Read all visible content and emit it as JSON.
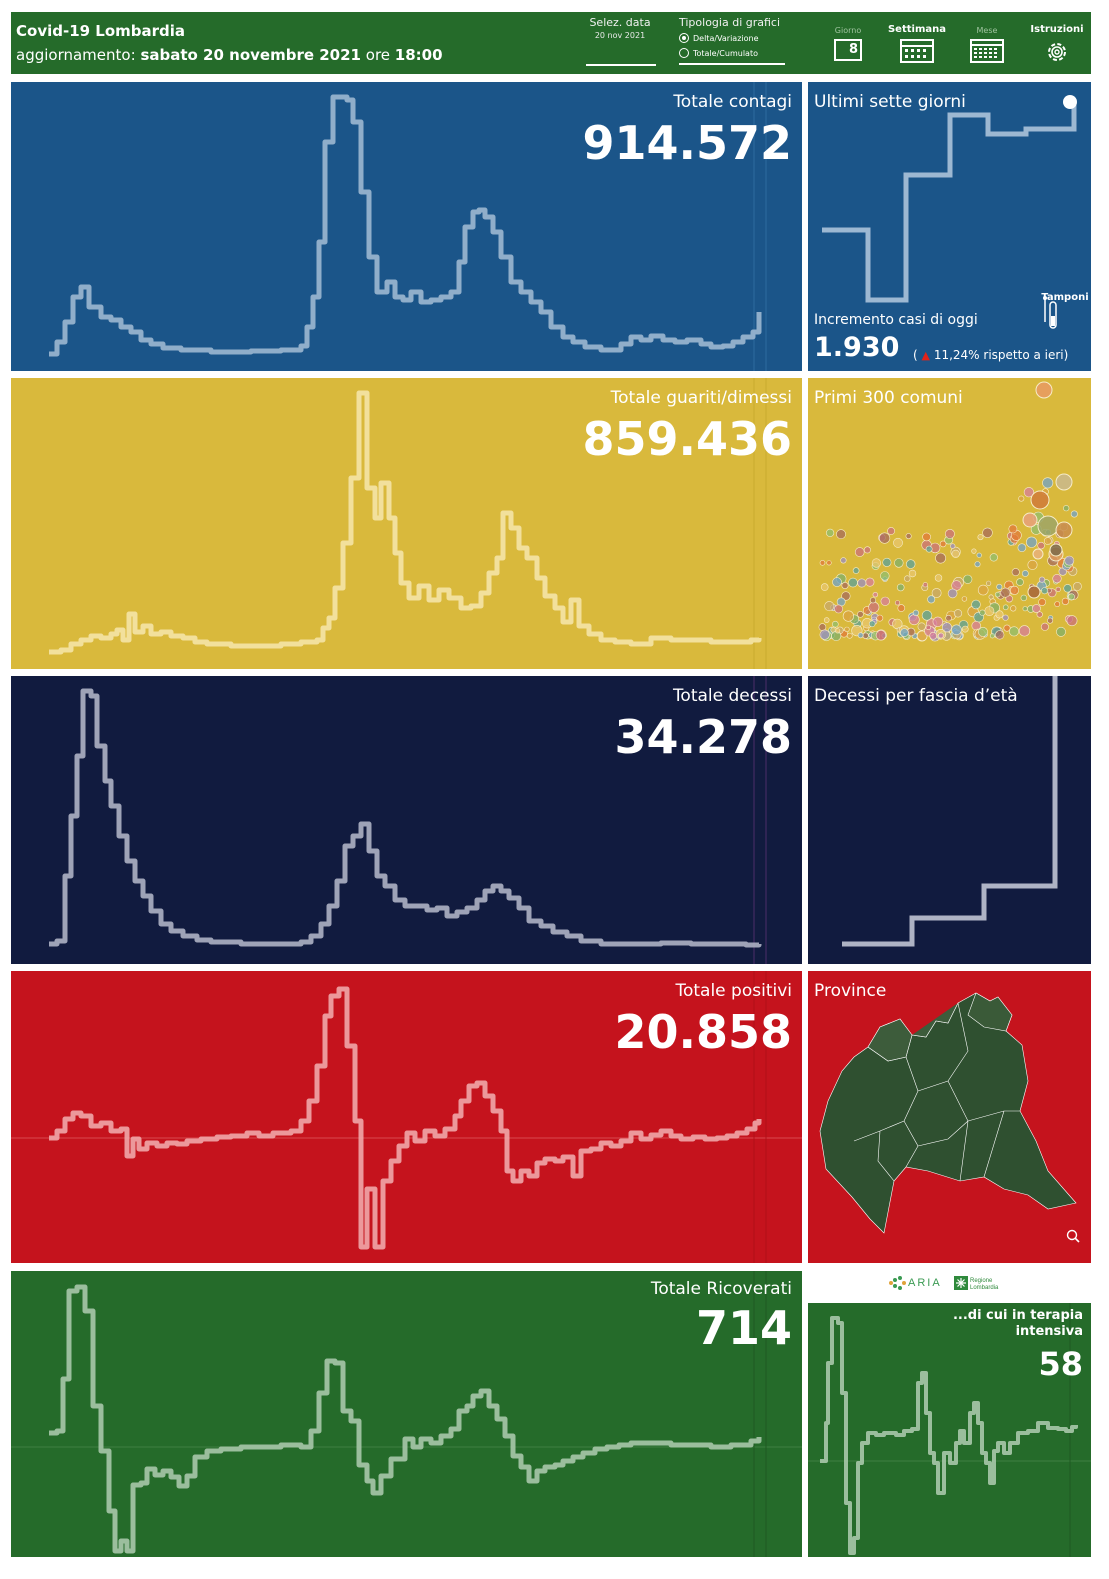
{
  "header": {
    "title": "Covid-19 Lombardia",
    "update_prefix": "aggiornamento:",
    "update_date": "sabato 20 novembre 2021",
    "update_ore": "ore",
    "update_time": "18:00",
    "select_date_label": "Selez. data",
    "select_date_value": "20 nov 2021",
    "chart_type_label": "Tipologia di grafici",
    "option_delta": "Delta/Variazione",
    "option_total": "Totale/Cumulato",
    "tab_giorno": "Giorno",
    "tab_giorno_num": "8",
    "tab_settimana": "Settimana",
    "tab_mese": "Mese",
    "tab_istruzioni": "Istruzioni"
  },
  "panels": {
    "contagi": {
      "label": "Totale contagi",
      "value": "914.572",
      "color": "#1b5589"
    },
    "guariti": {
      "label": "Totale guariti/dimessi",
      "value": "859.436",
      "color": "#d9b93c"
    },
    "decessi": {
      "label": "Totale decessi",
      "value": "34.278",
      "color": "#111b3f"
    },
    "positivi": {
      "label": "Totale positivi",
      "value": "20.858",
      "color": "#c5131d"
    },
    "ricoverati": {
      "label": "Totale Ricoverati",
      "value": "714",
      "color": "#256b2a"
    }
  },
  "side": {
    "settegiorni": {
      "title": "Ultimi sette giorni",
      "incremento_label": "Incremento casi di oggi",
      "incremento_value": "1.930",
      "delta_text": "11,24% rispetto a  ieri)",
      "open_paren": "(",
      "tamponi": "Tamponi"
    },
    "comuni": {
      "title": "Primi 300 comuni"
    },
    "fascia": {
      "title": "Decessi per fascia d’età"
    },
    "province": {
      "title": "Province"
    },
    "terapia": {
      "label_line1": "...di cui in terapia",
      "label_line2": "intensiva",
      "value": "58"
    },
    "logos": {
      "aria": "ARIA",
      "regione": "Regione Lombardia"
    }
  }
}
